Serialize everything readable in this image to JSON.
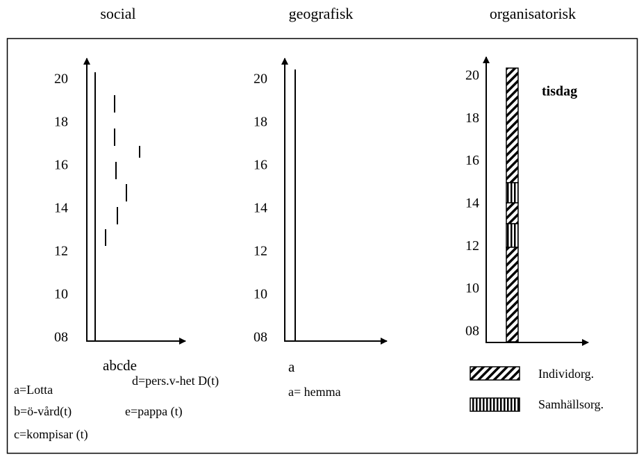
{
  "headers": [
    "social",
    "geografisk",
    "organisatorisk"
  ],
  "panels": [
    {
      "y_ticks": [
        "20",
        "18",
        "16",
        "14",
        "12",
        "10",
        "08"
      ],
      "x_label": "abcde",
      "legend": [
        "a=Lotta",
        "d=pers.v-het D(t)",
        "b=ö-vård(t)",
        "e=pappa (t)",
        "c=kompisar (t)"
      ]
    },
    {
      "y_ticks": [
        "20",
        "18",
        "16",
        "14",
        "12",
        "10",
        "08"
      ],
      "x_label": "a",
      "legend": [
        "a= hemma"
      ]
    },
    {
      "y_ticks": [
        "20",
        "18",
        "16",
        "14",
        "12",
        "10",
        "08"
      ],
      "day": "tisdag",
      "legend": [
        "Individorg.",
        "Samhällsorg."
      ]
    }
  ]
}
